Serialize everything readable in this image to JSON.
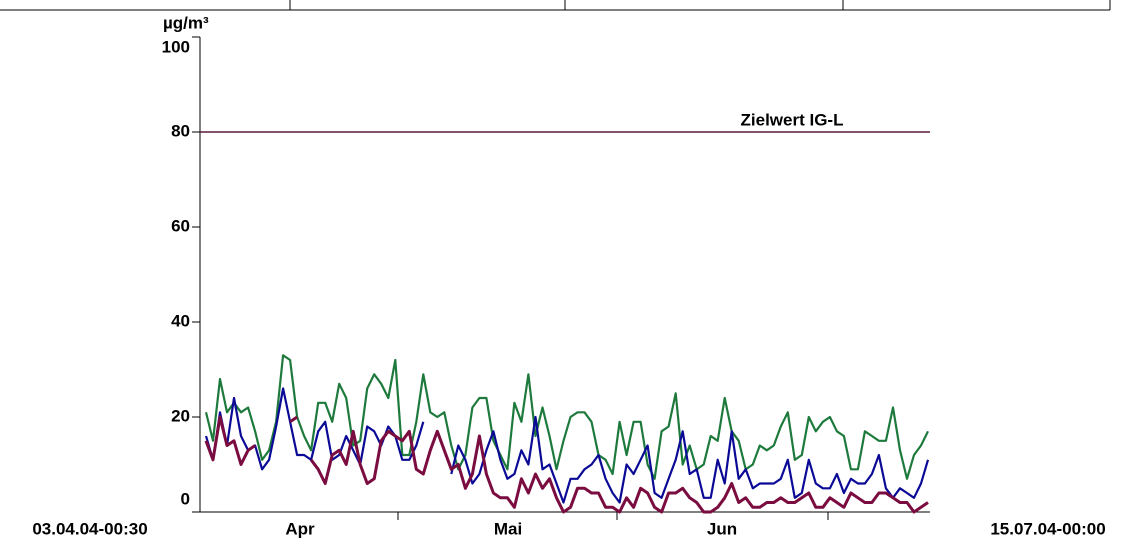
{
  "chart_data": {
    "type": "line",
    "y_unit": "µg/m³",
    "start_label": "03.04.04-00:30",
    "end_label": "15.07.04-00:00",
    "months": [
      "Apr",
      "Mai",
      "Jun"
    ],
    "ylim": [
      0,
      100
    ],
    "yticks": [
      0,
      20,
      40,
      60,
      80,
      100
    ],
    "reference_line": {
      "value": 80,
      "label": "Zielwert IG-L",
      "color": "#5a1a3a"
    },
    "series": [
      {
        "color": "#1e7a3c",
        "width": 2.2,
        "values": [
          21,
          15,
          28,
          21,
          23,
          21,
          22,
          17,
          11,
          13,
          19,
          33,
          32,
          20,
          16,
          13,
          23,
          23,
          19,
          27,
          24,
          14,
          15,
          26,
          29,
          27,
          24,
          32,
          12,
          12,
          19,
          29,
          21,
          20,
          21,
          14,
          9,
          12,
          22,
          24,
          24,
          15,
          12,
          9,
          23,
          19,
          29,
          16,
          22,
          16,
          9,
          15,
          20,
          21,
          21,
          19,
          12,
          11,
          8,
          19,
          12,
          19,
          19,
          10,
          7,
          17,
          18,
          25,
          10,
          14,
          9,
          10,
          16,
          15,
          24,
          17,
          15,
          9,
          10,
          14,
          13,
          14,
          18,
          21,
          11,
          12,
          20,
          17,
          19,
          20,
          17,
          16,
          9,
          9,
          17,
          16,
          15,
          15,
          22,
          13,
          7,
          12,
          14,
          17
        ]
      },
      {
        "color": "#0a0a96",
        "width": 2.2,
        "values": [
          16,
          11,
          21,
          14,
          24,
          16,
          13,
          14,
          9,
          11,
          18,
          26,
          19,
          12,
          12,
          11,
          17,
          19,
          11,
          12,
          16,
          13,
          10,
          18,
          17,
          14,
          18,
          16,
          11,
          11,
          14,
          19,
          null,
          null,
          null,
          8,
          14,
          11,
          6,
          8,
          13,
          17,
          11,
          7,
          8,
          13,
          10,
          20,
          9,
          10,
          6,
          2,
          7,
          7,
          9,
          10,
          12,
          7,
          4,
          2,
          10,
          8,
          11,
          14,
          4,
          3,
          7,
          11,
          17,
          8,
          9,
          3,
          3,
          11,
          6,
          17,
          7,
          9,
          5,
          6,
          6,
          6,
          7,
          11,
          3,
          4,
          11,
          6,
          5,
          5,
          8,
          4,
          7,
          6,
          6,
          8,
          12,
          5,
          3,
          5,
          4,
          3,
          6,
          11
        ]
      },
      {
        "color": "#7a0c40",
        "width": 3,
        "values": [
          15,
          11,
          20,
          14,
          15,
          10,
          13,
          14,
          null,
          null,
          null,
          null,
          19,
          20,
          null,
          11,
          9,
          6,
          12,
          13,
          10,
          17,
          10,
          6,
          7,
          15,
          17,
          16,
          15,
          17,
          9,
          8,
          13,
          17,
          13,
          9,
          10,
          5,
          8,
          16,
          8,
          4,
          3,
          3,
          1,
          7,
          4,
          8,
          5,
          7,
          3,
          0,
          1,
          5,
          5,
          4,
          4,
          1,
          1,
          0,
          3,
          1,
          5,
          4,
          1,
          0,
          4,
          4,
          5,
          3,
          2,
          0,
          0,
          1,
          3,
          6,
          2,
          3,
          1,
          1,
          2,
          2,
          3,
          2,
          2,
          3,
          4,
          1,
          1,
          3,
          2,
          1,
          4,
          3,
          2,
          2,
          4,
          4,
          3,
          2,
          2,
          0,
          1,
          2
        ]
      }
    ]
  }
}
